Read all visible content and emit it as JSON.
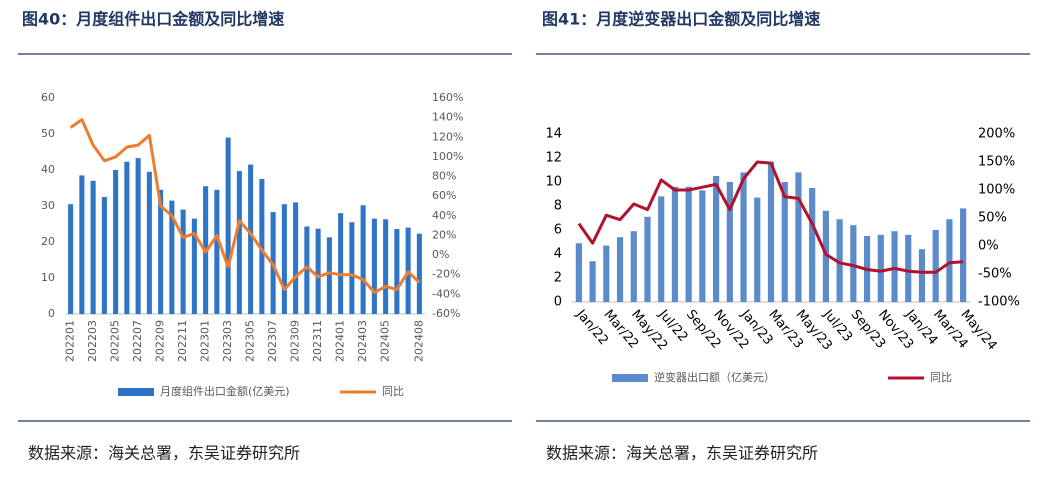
{
  "chart_data": [
    {
      "type": "bar",
      "title": "图40：月度组件出口金额及同比增速",
      "source": "数据来源：海关总署，东吴证券研究所",
      "categories": [
        "202201",
        null,
        "202203",
        null,
        "202205",
        null,
        "202207",
        null,
        "202209",
        null,
        "202211",
        null,
        "202301",
        null,
        "202303",
        null,
        "202305",
        null,
        "202307",
        null,
        "202309",
        null,
        "202311",
        null,
        "202401",
        null,
        "202403",
        null,
        "202405",
        null,
        null,
        "202408"
      ],
      "series": [
        {
          "name": "月度组件出口金额(亿美元)",
          "color": "#2e75c6",
          "values": [
            30.5,
            38.5,
            37,
            32.5,
            40,
            42.3,
            43.3,
            39.5,
            34.5,
            31.5,
            29,
            26.5,
            35.5,
            34.5,
            49,
            39.7,
            41.5,
            37.5,
            28.3,
            30.5,
            31,
            24.3,
            23.7,
            21.3,
            28,
            25.5,
            30.2,
            26.5,
            26.3,
            23.6,
            24,
            22.3
          ]
        },
        {
          "name": "同比",
          "color": "#ed7d31",
          "type": "line",
          "axis": "y2",
          "values": [
            130,
            138,
            112,
            96,
            100,
            110,
            112,
            122,
            50,
            40,
            18,
            22,
            3,
            20,
            -12,
            35,
            22,
            5,
            -10,
            -35,
            -22,
            -12,
            -22,
            -18,
            -20,
            -20,
            -25,
            -38,
            -32,
            -35,
            -17,
            -28
          ]
        }
      ],
      "ylim": [
        0,
        60
      ],
      "yticks": [
        0,
        10,
        20,
        30,
        40,
        50,
        60
      ],
      "y2lim": [
        -60,
        160
      ],
      "y2ticks": [
        {
          "value": -60,
          "label": "-60%"
        },
        {
          "value": -40,
          "label": "-40%"
        },
        {
          "value": -20,
          "label": "-20%"
        },
        {
          "value": 0,
          "label": "0%"
        },
        {
          "value": 20,
          "label": "20%"
        },
        {
          "value": 40,
          "label": "40%"
        },
        {
          "value": 60,
          "label": "60%"
        },
        {
          "value": 80,
          "label": "80%"
        },
        {
          "value": 100,
          "label": "100%"
        },
        {
          "value": 120,
          "label": "120%"
        },
        {
          "value": 140,
          "label": "140%"
        },
        {
          "value": 160,
          "label": "160%"
        }
      ],
      "grid": false
    },
    {
      "type": "bar",
      "title": "图41：月度逆变器出口金额及同比增速",
      "source": "数据来源：海关总署，东吴证券研究所",
      "categories": [
        "Jan/22",
        null,
        "Mar/22",
        null,
        "May/22",
        null,
        "Jul/22",
        null,
        "Sep/22",
        null,
        "Nov/22",
        null,
        "Jan/23",
        null,
        "Mar/23",
        null,
        "May/23",
        null,
        "Jul/23",
        null,
        "Sep/23",
        null,
        "Nov/23",
        null,
        "Jan/24",
        null,
        "Mar/24",
        null,
        "May/24"
      ],
      "series": [
        {
          "name": "逆变器出口额（亿美元）",
          "color": "#5b8bc9",
          "values": [
            4.9,
            3.4,
            4.7,
            5.4,
            5.9,
            7.1,
            8.8,
            9.6,
            9.6,
            9.3,
            10.5,
            10,
            10.8,
            8.7,
            11.7,
            10,
            10.8,
            9.5,
            7.6,
            6.9,
            6.4,
            5.5,
            5.6,
            5.9,
            5.6,
            4.4,
            6.0,
            6.9,
            7.8
          ]
        },
        {
          "name": "同比",
          "color": "#b3122e",
          "type": "line",
          "axis": "y2",
          "values": [
            40,
            5,
            55,
            47,
            75,
            65,
            118,
            100,
            100,
            105,
            110,
            65,
            120,
            150,
            148,
            88,
            85,
            40,
            -15,
            -30,
            -35,
            -42,
            -45,
            -40,
            -45,
            -47,
            -47,
            -30,
            -28
          ]
        }
      ],
      "ylim": [
        0,
        14
      ],
      "yticks": [
        0,
        2,
        4,
        6,
        8,
        10,
        12,
        14
      ],
      "y2lim": [
        -100,
        200
      ],
      "y2ticks": [
        {
          "value": -100,
          "label": "-100%"
        },
        {
          "value": -50,
          "label": "-50%"
        },
        {
          "value": 0,
          "label": "0%"
        },
        {
          "value": 50,
          "label": "50%"
        },
        {
          "value": 100,
          "label": "100%"
        },
        {
          "value": 150,
          "label": "150%"
        },
        {
          "value": 200,
          "label": "200%"
        }
      ],
      "grid": false
    }
  ]
}
